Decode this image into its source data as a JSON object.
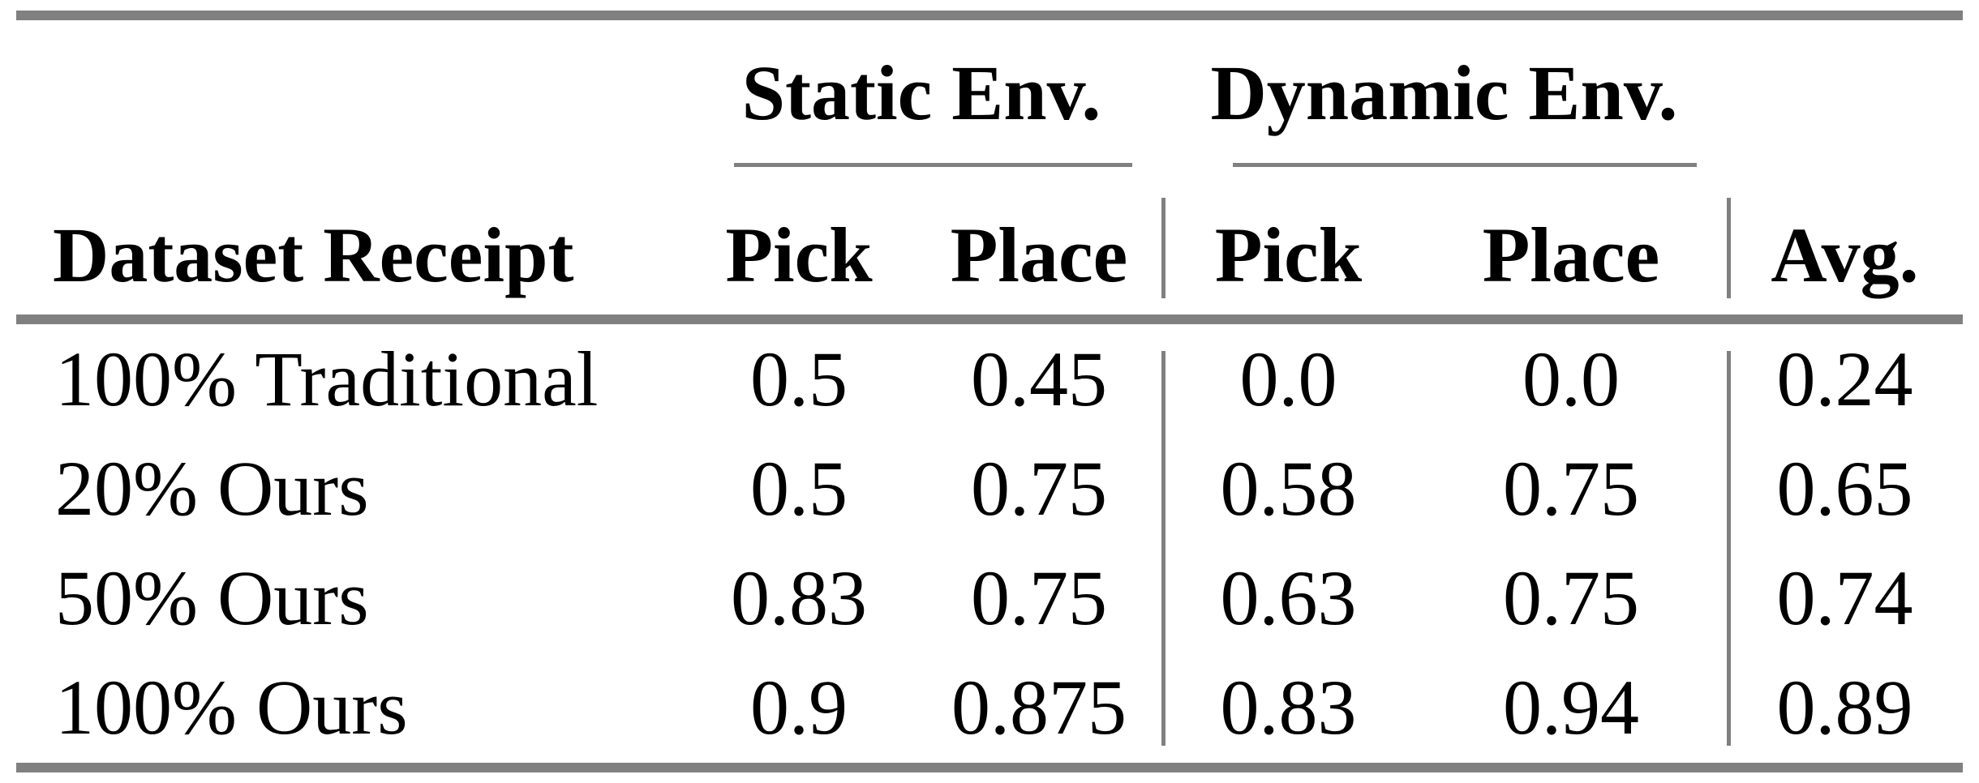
{
  "table": {
    "groups": {
      "static": "Static Env.",
      "dynamic": "Dynamic Env."
    },
    "header": {
      "row_header": "Dataset Receipt",
      "static_pick": "Pick",
      "static_place": "Place",
      "dynamic_pick": "Pick",
      "dynamic_place": "Place",
      "avg": "Avg."
    },
    "rows": [
      {
        "label": "100% Traditional",
        "static_pick": "0.5",
        "static_place": "0.45",
        "dynamic_pick": "0.0",
        "dynamic_place": "0.0",
        "avg": "0.24"
      },
      {
        "label": "20% Ours",
        "static_pick": "0.5",
        "static_place": "0.75",
        "dynamic_pick": "0.58",
        "dynamic_place": "0.75",
        "avg": "0.65"
      },
      {
        "label": "50% Ours",
        "static_pick": "0.83",
        "static_place": "0.75",
        "dynamic_pick": "0.63",
        "dynamic_place": "0.75",
        "avg": "0.74"
      },
      {
        "label": "100% Ours",
        "static_pick": "0.9",
        "static_place": "0.875",
        "dynamic_pick": "0.83",
        "dynamic_place": "0.94",
        "avg": "0.89"
      }
    ],
    "colors": {
      "rule": "#808080",
      "text": "#000000",
      "background": "#ffffff"
    }
  }
}
